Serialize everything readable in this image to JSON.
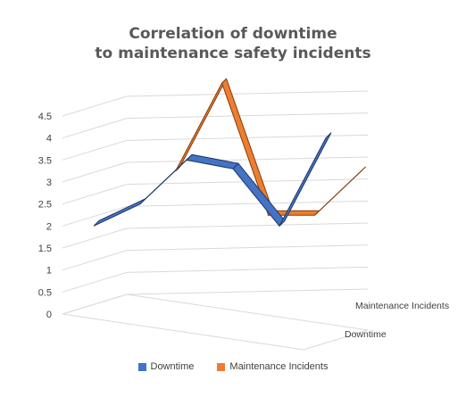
{
  "chart_data": {
    "type": "line",
    "subtype": "3d-line",
    "title_lines": [
      "Correlation of downtime",
      "to maintenance safety incidents"
    ],
    "x_categories": [
      "",
      "",
      "",
      "",
      "",
      ""
    ],
    "ylim": [
      0,
      4.5
    ],
    "y_ticks": [
      "0",
      "0.5",
      "1",
      "1.5",
      "2",
      "2.5",
      "3",
      "3.5",
      "4",
      "4.5"
    ],
    "depth_labels": [
      "Maintenance Incidents",
      "Downtime"
    ],
    "grid": true,
    "legend_position": "bottom",
    "series": [
      {
        "name": "Downtime",
        "color": "#4472C4",
        "values": [
          2.0,
          2.5,
          3.5,
          3.3,
          2.0,
          4.0
        ]
      },
      {
        "name": "Maintenance Incidents",
        "color": "#ED7D31",
        "values": [
          null,
          3.0,
          5.0,
          2.0,
          2.0,
          3.0
        ]
      }
    ]
  }
}
